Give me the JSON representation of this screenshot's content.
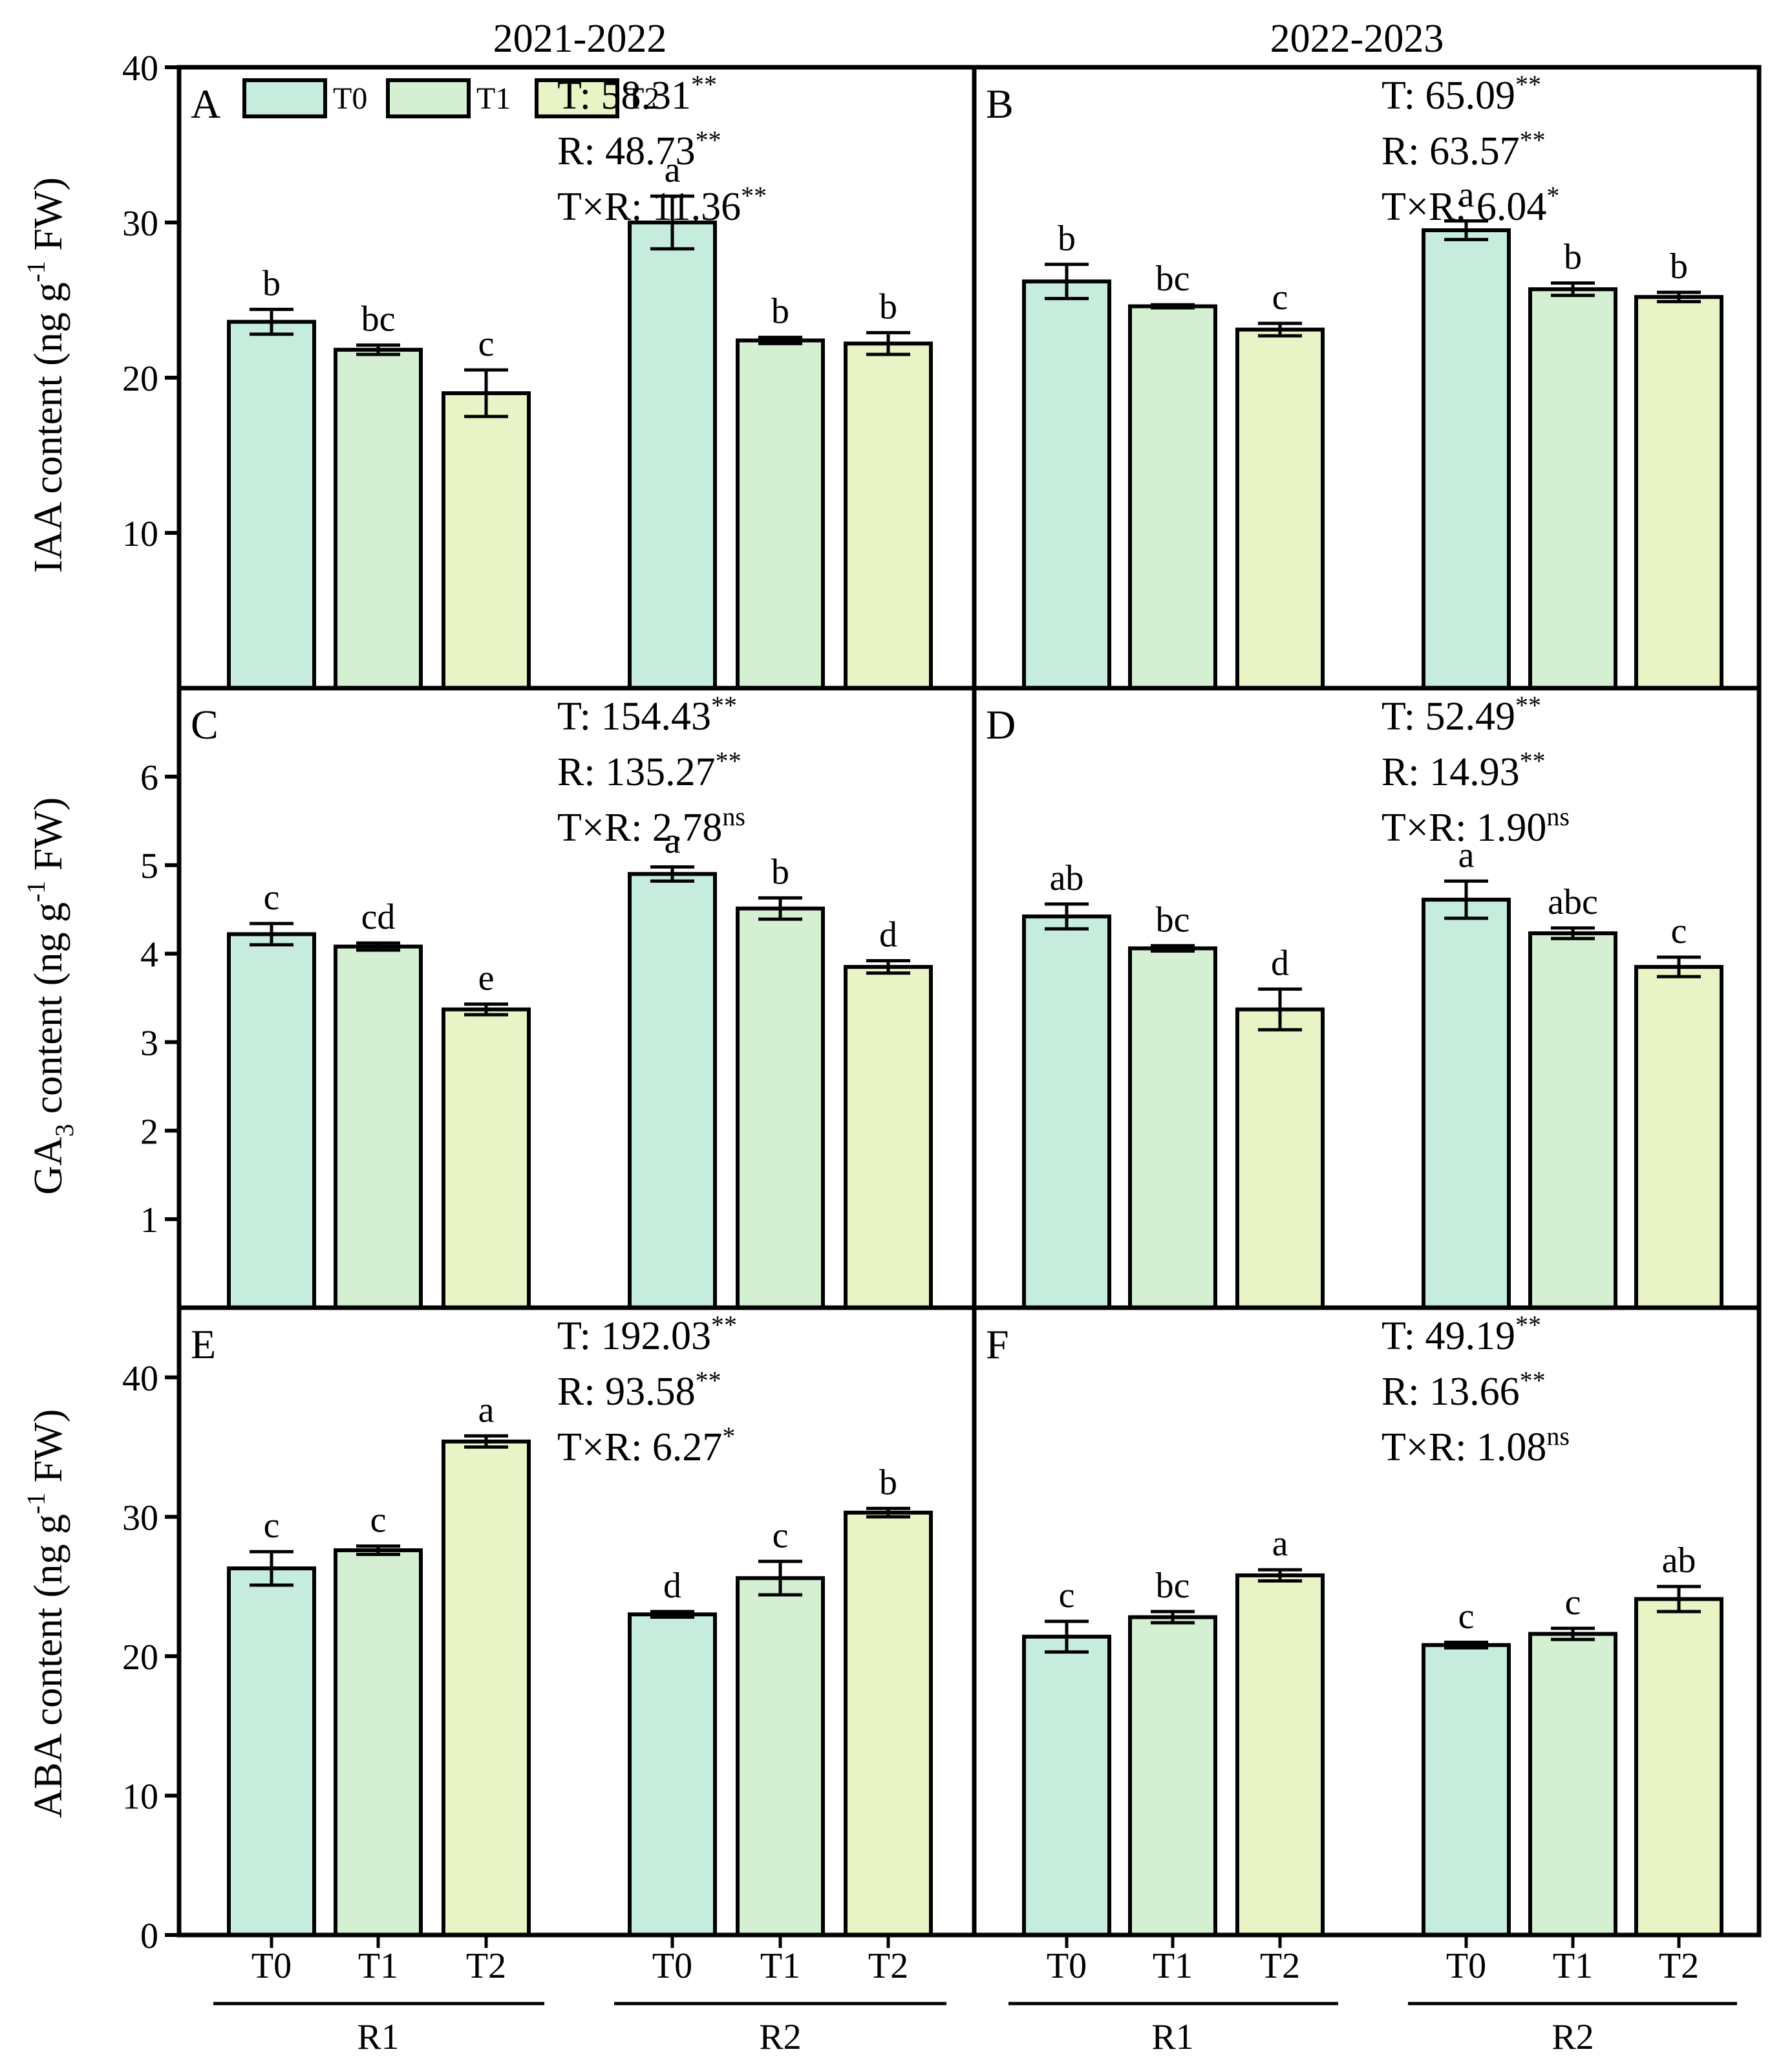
{
  "figure": {
    "column_titles": [
      "2021-2022",
      "2022-2023"
    ],
    "y_axis_labels": [
      {
        "prefix": "IAA content (ng g",
        "sup": "-1",
        "suffix": " FW)"
      },
      {
        "prefix": "GA",
        "sub": "3",
        "mid": " content (ng g",
        "sup": "-1",
        "suffix": " FW)"
      },
      {
        "prefix": "ABA content (ng g",
        "sup": "-1",
        "suffix": " FW)"
      }
    ],
    "x_ticks": [
      "T0",
      "T1",
      "T2"
    ],
    "x_groups": [
      "R1",
      "R2"
    ]
  },
  "legend": {
    "items": [
      {
        "label": "T0",
        "color": "#c5ecdc"
      },
      {
        "label": "T1",
        "color": "#d4efd2"
      },
      {
        "label": "T2",
        "color": "#e8f4c5"
      }
    ]
  },
  "colors": {
    "T0": "#c5ecdc",
    "T1": "#d4efd2",
    "T2": "#e8f4c5",
    "stroke": "#000000"
  },
  "chart_data": [
    {
      "panel": "A",
      "type": "bar",
      "row": 0,
      "col": 0,
      "ylim": [
        0,
        40
      ],
      "yticks": [
        10,
        20,
        30,
        40
      ],
      "show_zero": false,
      "groups": [
        "R1",
        "R2"
      ],
      "series": [
        "T0",
        "T1",
        "T2"
      ],
      "values": [
        [
          23.6,
          21.8,
          19.0
        ],
        [
          30.0,
          22.4,
          22.2
        ]
      ],
      "errors": [
        [
          0.8,
          0.3,
          1.5
        ],
        [
          1.7,
          0.2,
          0.7
        ]
      ],
      "letters": [
        [
          "b",
          "bc",
          "c"
        ],
        [
          "a",
          "b",
          "b"
        ]
      ],
      "stats": [
        {
          "label": "T: 58.31",
          "sig": "**"
        },
        {
          "label": "R: 48.73",
          "sig": "**"
        },
        {
          "label": "T×R: 11.36",
          "sig": "**"
        }
      ]
    },
    {
      "panel": "B",
      "type": "bar",
      "row": 0,
      "col": 1,
      "ylim": [
        0,
        40
      ],
      "yticks": [
        10,
        20,
        30,
        40
      ],
      "show_zero": false,
      "groups": [
        "R1",
        "R2"
      ],
      "series": [
        "T0",
        "T1",
        "T2"
      ],
      "values": [
        [
          26.2,
          24.6,
          23.1
        ],
        [
          29.5,
          25.7,
          25.2
        ]
      ],
      "errors": [
        [
          1.1,
          0.1,
          0.4
        ],
        [
          0.6,
          0.4,
          0.3
        ]
      ],
      "letters": [
        [
          "b",
          "bc",
          "c"
        ],
        [
          "a",
          "b",
          "b"
        ]
      ],
      "stats": [
        {
          "label": "T: 65.09",
          "sig": "**"
        },
        {
          "label": "R: 63.57",
          "sig": "**"
        },
        {
          "label": "T×R: 6.04",
          "sig": "*"
        }
      ]
    },
    {
      "panel": "C",
      "type": "bar",
      "row": 1,
      "col": 0,
      "ylim": [
        0,
        7
      ],
      "yticks": [
        1,
        2,
        3,
        4,
        5,
        6
      ],
      "show_zero": false,
      "groups": [
        "R1",
        "R2"
      ],
      "series": [
        "T0",
        "T1",
        "T2"
      ],
      "values": [
        [
          4.22,
          4.08,
          3.37
        ],
        [
          4.9,
          4.51,
          3.85
        ]
      ],
      "errors": [
        [
          0.12,
          0.04,
          0.06
        ],
        [
          0.08,
          0.12,
          0.07
        ]
      ],
      "letters": [
        [
          "c",
          "cd",
          "e"
        ],
        [
          "a",
          "b",
          "d"
        ]
      ],
      "stats": [
        {
          "label": "T: 154.43",
          "sig": "**"
        },
        {
          "label": "R: 135.27",
          "sig": "**"
        },
        {
          "label": "T×R: 2.78",
          "sig": "ns"
        }
      ]
    },
    {
      "panel": "D",
      "type": "bar",
      "row": 1,
      "col": 1,
      "ylim": [
        0,
        7
      ],
      "yticks": [
        1,
        2,
        3,
        4,
        5,
        6
      ],
      "show_zero": false,
      "groups": [
        "R1",
        "R2"
      ],
      "series": [
        "T0",
        "T1",
        "T2"
      ],
      "values": [
        [
          4.42,
          4.06,
          3.37
        ],
        [
          4.61,
          4.23,
          3.85
        ]
      ],
      "errors": [
        [
          0.14,
          0.03,
          0.23
        ],
        [
          0.21,
          0.06,
          0.11
        ]
      ],
      "letters": [
        [
          "ab",
          "bc",
          "d"
        ],
        [
          "a",
          "abc",
          "c"
        ]
      ],
      "stats": [
        {
          "label": "T: 52.49",
          "sig": "**"
        },
        {
          "label": "R: 14.93",
          "sig": "**"
        },
        {
          "label": "T×R: 1.90",
          "sig": "ns"
        }
      ]
    },
    {
      "panel": "E",
      "type": "bar",
      "row": 2,
      "col": 0,
      "ylim": [
        0,
        45
      ],
      "yticks": [
        0,
        10,
        20,
        30,
        40
      ],
      "show_zero": true,
      "groups": [
        "R1",
        "R2"
      ],
      "series": [
        "T0",
        "T1",
        "T2"
      ],
      "values": [
        [
          26.3,
          27.6,
          35.4
        ],
        [
          23.0,
          25.6,
          30.3
        ]
      ],
      "errors": [
        [
          1.2,
          0.3,
          0.4
        ],
        [
          0.2,
          1.2,
          0.3
        ]
      ],
      "letters": [
        [
          "c",
          "c",
          "a"
        ],
        [
          "d",
          "c",
          "b"
        ]
      ],
      "stats": [
        {
          "label": "T: 192.03",
          "sig": "**"
        },
        {
          "label": "R: 93.58",
          "sig": "**"
        },
        {
          "label": "T×R: 6.27",
          "sig": "*"
        }
      ]
    },
    {
      "panel": "F",
      "type": "bar",
      "row": 2,
      "col": 1,
      "ylim": [
        0,
        45
      ],
      "yticks": [
        0,
        10,
        20,
        30,
        40
      ],
      "show_zero": true,
      "groups": [
        "R1",
        "R2"
      ],
      "series": [
        "T0",
        "T1",
        "T2"
      ],
      "values": [
        [
          21.4,
          22.8,
          25.8
        ],
        [
          20.8,
          21.6,
          24.1
        ]
      ],
      "errors": [
        [
          1.1,
          0.4,
          0.4
        ],
        [
          0.2,
          0.4,
          0.9
        ]
      ],
      "letters": [
        [
          "c",
          "bc",
          "a"
        ],
        [
          "c",
          "c",
          "ab"
        ]
      ],
      "stats": [
        {
          "label": "T: 49.19",
          "sig": "**"
        },
        {
          "label": "R: 13.66",
          "sig": "**"
        },
        {
          "label": "T×R: 1.08",
          "sig": "ns"
        }
      ]
    }
  ]
}
